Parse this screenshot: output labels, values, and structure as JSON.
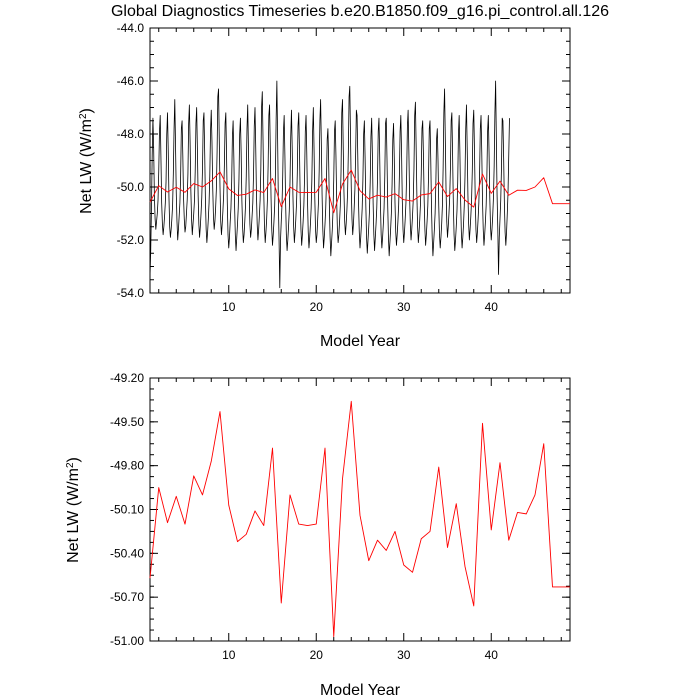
{
  "chart_data": [
    {
      "type": "line",
      "title": "Global Diagnostics Timeseries b.e20.B1850.f09_g16.pi_control.all.126",
      "xlabel": "Model Year",
      "ylabel_main": "Net LW (W/m",
      "ylabel_sup": "2",
      "ylabel_close": ")",
      "xlim": [
        1,
        49
      ],
      "ylim": [
        -54.0,
        -44.0
      ],
      "xticks": [
        10,
        20,
        30,
        40
      ],
      "yticks": [
        -54.0,
        -52.0,
        -50.0,
        -48.0,
        -46.0,
        -44.0
      ],
      "ytick_labels": [
        "-54.0",
        "-52.0",
        "-50.0",
        "-48.0",
        "-46.0",
        "-44.0"
      ],
      "series": [
        {
          "color": "#000000",
          "kind": "monthly",
          "x_start": 1.0,
          "x_step": 0.0833333,
          "values": [
            -53.4,
            -52.4,
            -50.8,
            -48.8,
            -47.4,
            -48.5,
            -50.3,
            -51.2,
            -51.6,
            -51.3,
            -51.0,
            -50.5,
            -49.4,
            -47.9,
            -47.3,
            -48.9,
            -50.6,
            -51.4,
            -51.8,
            -51.5,
            -51.1,
            -50.6,
            -49.8,
            -48.0,
            -47.2,
            -48.6,
            -50.4,
            -51.5,
            -51.9,
            -51.6,
            -51.2,
            -50.7,
            -49.5,
            -47.8,
            -46.7,
            -48.4,
            -50.2,
            -51.3,
            -52.0,
            -51.6,
            -51.1,
            -50.6,
            -49.6,
            -47.8,
            -47.5,
            -48.8,
            -50.4,
            -51.2,
            -51.7,
            -51.5,
            -51.0,
            -50.5,
            -49.5,
            -47.6,
            -46.9,
            -48.3,
            -50.1,
            -51.2,
            -51.8,
            -51.4,
            -51.0,
            -50.5,
            -49.4,
            -47.6,
            -47.0,
            -48.6,
            -50.3,
            -51.4,
            -51.9,
            -51.5,
            -51.0,
            -50.4,
            -49.3,
            -47.5,
            -47.2,
            -48.7,
            -50.5,
            -51.6,
            -52.1,
            -51.7,
            -51.2,
            -50.6,
            -49.6,
            -47.9,
            -47.1,
            -48.3,
            -50.0,
            -51.1,
            -51.6,
            -51.3,
            -50.8,
            -50.1,
            -48.7,
            -46.6,
            -46.3,
            -48.2,
            -50.0,
            -51.3,
            -51.8,
            -51.4,
            -50.9,
            -50.3,
            -49.2,
            -47.6,
            -47.2,
            -48.8,
            -50.6,
            -51.8,
            -52.3,
            -51.9,
            -51.3,
            -50.8,
            -49.8,
            -48.1,
            -47.5,
            -48.9,
            -50.7,
            -51.8,
            -52.4,
            -51.9,
            -51.4,
            -50.8,
            -49.7,
            -48.0,
            -47.4,
            -48.7,
            -50.5,
            -51.5,
            -52.1,
            -51.8,
            -51.3,
            -50.7,
            -49.6,
            -47.8,
            -46.9,
            -48.5,
            -50.2,
            -51.4,
            -51.9,
            -51.6,
            -51.1,
            -50.6,
            -49.5,
            -47.7,
            -47.0,
            -48.5,
            -50.3,
            -51.4,
            -52.0,
            -51.6,
            -51.1,
            -50.5,
            -49.3,
            -47.0,
            -46.4,
            -48.2,
            -50.2,
            -51.5,
            -52.1,
            -51.7,
            -51.2,
            -50.5,
            -49.2,
            -47.3,
            -46.9,
            -48.6,
            -50.4,
            -51.6,
            -52.2,
            -51.8,
            -51.3,
            -50.7,
            -49.5,
            -47.4,
            -46.0,
            -48.1,
            -50.5,
            -52.0,
            -53.8,
            -52.0,
            -51.3,
            -50.7,
            -49.6,
            -47.9,
            -47.3,
            -48.8,
            -50.6,
            -51.8,
            -52.4,
            -52.0,
            -51.5,
            -50.9,
            -49.8,
            -48.1,
            -47.1,
            -48.5,
            -50.3,
            -51.5,
            -52.1,
            -51.7,
            -51.2,
            -50.6,
            -49.5,
            -47.7,
            -47.2,
            -48.6,
            -50.4,
            -51.6,
            -52.2,
            -51.8,
            -51.3,
            -50.7,
            -49.6,
            -47.9,
            -47.3,
            -48.7,
            -50.5,
            -51.7,
            -52.3,
            -51.9,
            -51.4,
            -50.8,
            -49.7,
            -47.9,
            -47.0,
            -48.6,
            -50.4,
            -51.6,
            -52.1,
            -51.8,
            -51.2,
            -50.6,
            -49.4,
            -47.5,
            -46.7,
            -48.4,
            -50.3,
            -51.6,
            -52.3,
            -51.9,
            -51.4,
            -50.8,
            -49.8,
            -48.2,
            -47.8,
            -49.0,
            -50.7,
            -51.9,
            -52.6,
            -52.1,
            -51.6,
            -50.9,
            -49.7,
            -47.9,
            -47.5,
            -48.8,
            -50.5,
            -51.6,
            -52.1,
            -51.8,
            -51.3,
            -50.7,
            -49.4,
            -47.2,
            -46.7,
            -48.5,
            -50.2,
            -51.3,
            -51.8,
            -51.4,
            -50.9,
            -50.2,
            -48.7,
            -46.6,
            -46.2,
            -48.1,
            -50.0,
            -51.2,
            -51.8,
            -51.4,
            -50.8,
            -50.1,
            -48.8,
            -47.1,
            -47.3,
            -48.9,
            -50.6,
            -51.7,
            -52.3,
            -51.9,
            -51.4,
            -50.8,
            -49.7,
            -48.0,
            -47.5,
            -48.9,
            -50.7,
            -51.9,
            -52.5,
            -52.0,
            -51.5,
            -50.9,
            -49.8,
            -48.1,
            -47.4,
            -48.8,
            -50.6,
            -51.8,
            -52.4,
            -51.9,
            -51.4,
            -50.8,
            -49.7,
            -47.9,
            -47.4,
            -48.8,
            -50.6,
            -51.8,
            -52.3,
            -51.9,
            -51.4,
            -50.8,
            -49.6,
            -47.6,
            -47.4,
            -48.9,
            -50.7,
            -51.9,
            -52.6,
            -52.1,
            -51.6,
            -51.0,
            -49.9,
            -48.2,
            -47.6,
            -48.9,
            -50.6,
            -51.7,
            -52.2,
            -51.8,
            -51.3,
            -50.7,
            -49.6,
            -47.9,
            -47.3,
            -48.7,
            -50.5,
            -51.6,
            -52.1,
            -51.7,
            -51.2,
            -50.6,
            -49.5,
            -47.7,
            -47.1,
            -48.6,
            -50.3,
            -51.4,
            -52.0,
            -51.6,
            -51.1,
            -50.5,
            -49.3,
            -47.3,
            -46.8,
            -48.5,
            -50.3,
            -51.5,
            -52.1,
            -51.7,
            -51.2,
            -50.6,
            -49.5,
            -47.8,
            -47.5,
            -48.8,
            -50.5,
            -51.6,
            -52.2,
            -51.8,
            -51.3,
            -50.7,
            -49.6,
            -47.8,
            -47.5,
            -48.9,
            -50.7,
            -51.9,
            -52.6,
            -52.1,
            -51.6,
            -51.0,
            -49.9,
            -48.2,
            -47.8,
            -49.0,
            -50.7,
            -51.8,
            -52.3,
            -51.9,
            -51.4,
            -50.7,
            -49.3,
            -47.2,
            -46.3,
            -48.2,
            -50.1,
            -51.3,
            -51.9,
            -51.5,
            -51.0,
            -50.4,
            -49.3,
            -47.5,
            -47.2,
            -48.8,
            -50.6,
            -51.8,
            -52.4,
            -52.0,
            -51.5,
            -50.9,
            -49.8,
            -48.0,
            -47.3,
            -48.7,
            -50.5,
            -51.7,
            -52.3,
            -51.9,
            -51.4,
            -50.7,
            -49.6,
            -47.8,
            -46.9,
            -48.5,
            -50.3,
            -51.4,
            -52.0,
            -51.6,
            -51.1,
            -50.5,
            -49.4,
            -47.6,
            -47.1,
            -48.6,
            -50.4,
            -51.6,
            -52.1,
            -51.7,
            -51.2,
            -50.6,
            -49.5,
            -47.8,
            -47.3,
            -48.7,
            -50.5,
            -51.6,
            -52.2,
            -51.8,
            -51.3,
            -50.7,
            -49.6,
            -47.9,
            -47.3,
            -48.7,
            -50.4,
            -51.5,
            -52.0,
            -51.6,
            -51.1,
            -50.4,
            -49.2,
            -47.2,
            -46.0,
            -48.2,
            -50.3,
            -51.6,
            -53.3,
            -51.9,
            -51.2,
            -50.5,
            -49.3,
            -47.4,
            -47.5,
            -48.9,
            -50.6,
            -51.7,
            -52.2,
            -51.7,
            -51.0,
            -50.2,
            -48.8,
            -47.4
          ]
        },
        {
          "color": "#ff0000",
          "kind": "annual",
          "x": [
            1,
            2,
            3,
            4,
            5,
            6,
            7,
            8,
            9,
            10,
            11,
            12,
            13,
            14,
            15,
            16,
            17,
            18,
            19,
            20,
            21,
            22,
            23,
            24,
            25,
            26,
            27,
            28,
            29,
            30,
            31,
            32,
            33,
            34,
            35,
            36,
            37,
            38,
            39,
            40,
            41,
            42,
            43,
            44,
            45,
            46,
            47,
            48,
            49
          ],
          "values": [
            -50.57,
            -49.95,
            -50.19,
            -50.01,
            -50.2,
            -49.87,
            -50.0,
            -49.77,
            -49.43,
            -50.07,
            -50.32,
            -50.27,
            -50.11,
            -50.21,
            -49.68,
            -50.74,
            -50.0,
            -50.2,
            -50.21,
            -50.2,
            -49.68,
            -50.97,
            -49.89,
            -49.36,
            -50.14,
            -50.45,
            -50.31,
            -50.38,
            -50.25,
            -50.48,
            -50.53,
            -50.3,
            -50.25,
            -49.81,
            -50.36,
            -50.06,
            -50.49,
            -50.76,
            -49.51,
            -50.24,
            -49.78,
            -50.31,
            -50.12,
            -50.13,
            -50.0,
            -49.65,
            -50.63,
            -50.63,
            -50.63
          ]
        }
      ]
    },
    {
      "type": "line",
      "title": "",
      "xlabel": "Model Year",
      "ylabel_main": "Net LW (W/m",
      "ylabel_sup": "2",
      "ylabel_close": ")",
      "xlim": [
        1,
        49
      ],
      "ylim": [
        -51.0,
        -49.2
      ],
      "xticks": [
        10,
        20,
        30,
        40
      ],
      "yticks": [
        -51.0,
        -50.7,
        -50.4,
        -50.1,
        -49.8,
        -49.5,
        -49.2
      ],
      "ytick_labels": [
        "-51.00",
        "-50.70",
        "-50.40",
        "-50.10",
        "-49.80",
        "-49.50",
        "-49.20"
      ],
      "series": [
        {
          "color": "#ff0000",
          "kind": "annual",
          "x": [
            1,
            2,
            3,
            4,
            5,
            6,
            7,
            8,
            9,
            10,
            11,
            12,
            13,
            14,
            15,
            16,
            17,
            18,
            19,
            20,
            21,
            22,
            23,
            24,
            25,
            26,
            27,
            28,
            29,
            30,
            31,
            32,
            33,
            34,
            35,
            36,
            37,
            38,
            39,
            40,
            41,
            42,
            43,
            44,
            45,
            46,
            47,
            48,
            49
          ],
          "values": [
            -50.57,
            -49.95,
            -50.19,
            -50.01,
            -50.2,
            -49.87,
            -50.0,
            -49.77,
            -49.43,
            -50.07,
            -50.32,
            -50.27,
            -50.11,
            -50.21,
            -49.68,
            -50.74,
            -50.0,
            -50.2,
            -50.21,
            -50.2,
            -49.68,
            -50.97,
            -49.89,
            -49.36,
            -50.14,
            -50.45,
            -50.31,
            -50.38,
            -50.25,
            -50.48,
            -50.53,
            -50.3,
            -50.25,
            -49.81,
            -50.36,
            -50.06,
            -50.49,
            -50.76,
            -49.51,
            -50.24,
            -49.78,
            -50.31,
            -50.12,
            -50.13,
            -50.0,
            -49.65,
            -50.63,
            -50.63,
            -50.63
          ]
        }
      ]
    }
  ]
}
